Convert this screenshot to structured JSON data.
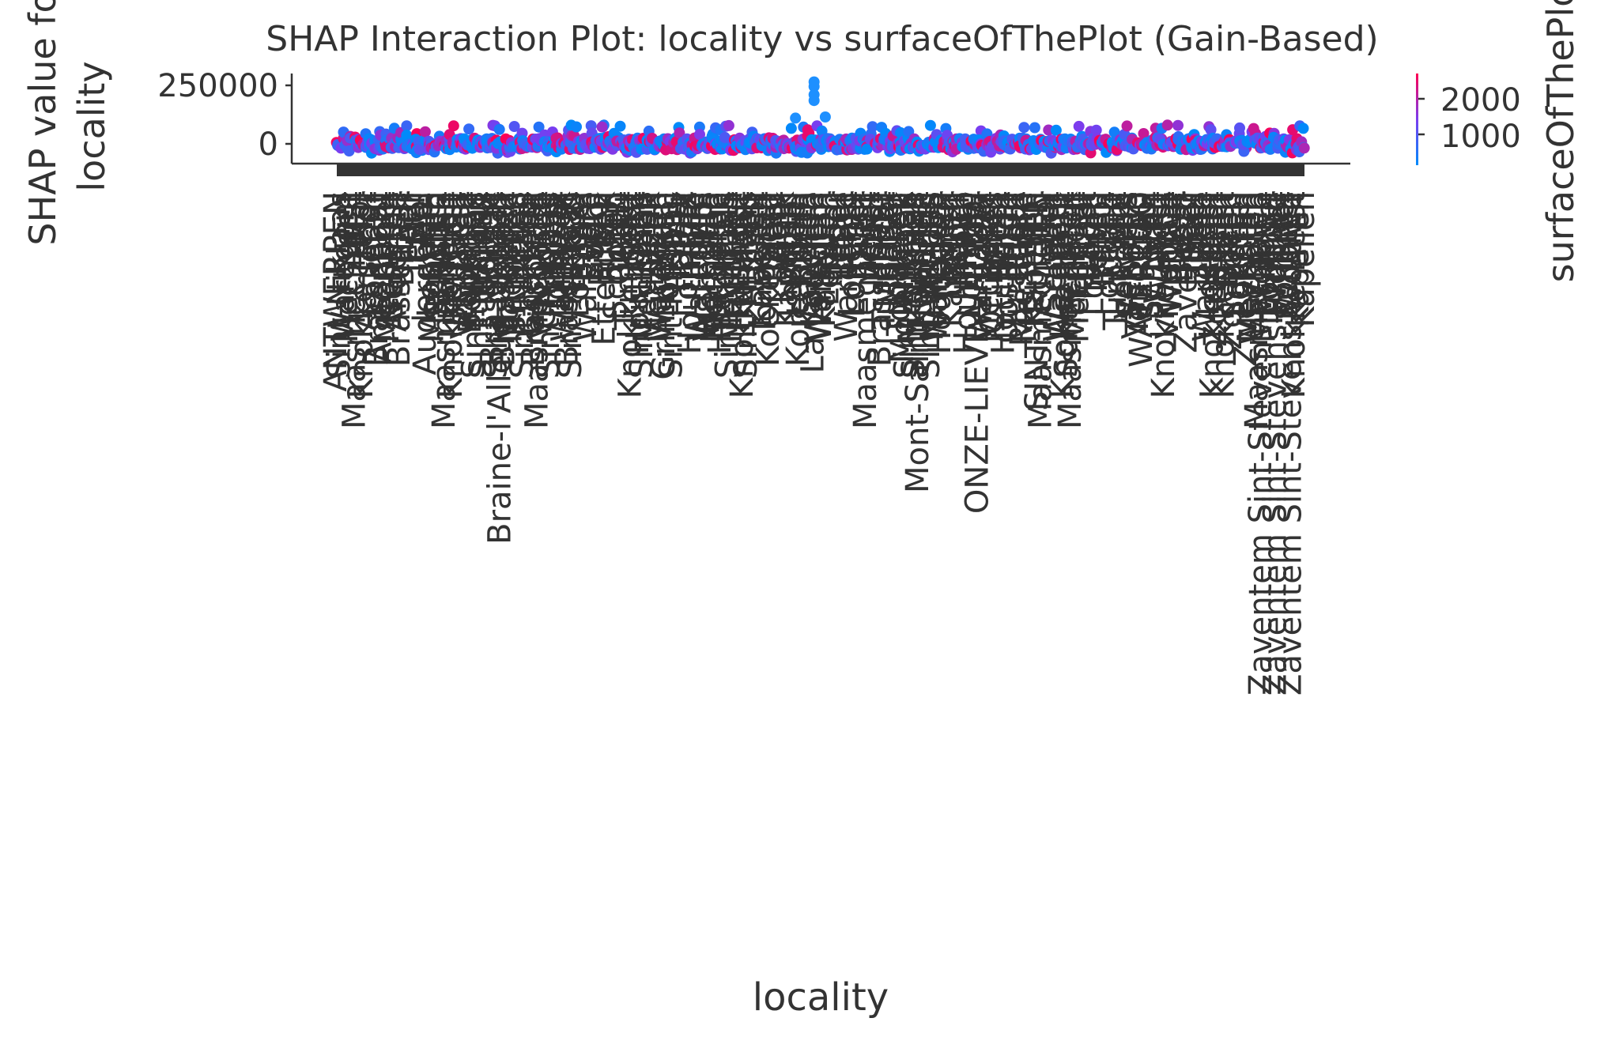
{
  "chart_data": {
    "type": "scatter",
    "title": "SHAP Interaction Plot: locality vs surfaceOfThePlot (Gain-Based)",
    "xlabel": "locality",
    "ylabel": "SHAP value for\nlocality",
    "ylim": [
      -50000,
      300000
    ],
    "yticks": [
      0,
      250000
    ],
    "ytick_labels": [
      "0",
      "250000"
    ],
    "grid": false,
    "categorical_x": true,
    "visible_x_tick_labels": [
      "ANTWERPEN",
      "Aalst",
      "Aarschot",
      "Anderlecht",
      "Andenne",
      "Ath",
      "Auderghem",
      "BRAINE",
      "BRUGGE",
      "Beringen",
      "Bertrix",
      "Braine-l'Alleud Ophain",
      "Bruxelles",
      "Charleroi",
      "Chapelle",
      "Dilbeek",
      "EEKLO",
      "Evere",
      "Etterbeek",
      "GAND",
      "Gent",
      "Genk",
      "Grimbergen",
      "Habay",
      "Halle",
      "Hermalle",
      "Herentals",
      "Hulshout",
      "Hasselt",
      "Koekelberg",
      "Kortrijk",
      "Kortenberg",
      "La Louvière",
      "Leuven",
      "Liège",
      "Lier",
      "MONS",
      "Mortsel",
      "Molenbeek",
      "Mont-Saint-Guibert",
      "NIVELLES",
      "Namur",
      "Ninove",
      "ONZE-LIEVE-VROUW",
      "Ottignies",
      "Oostende",
      "Roeselare",
      "SINT-TRUIDEN",
      "Seraing",
      "Schaerbeek",
      "Tournai",
      "Tienen",
      "Uccle",
      "Verviers",
      "WATERLOO",
      "WAVRE",
      "Woluwe",
      "Zaventem",
      "Zele",
      "Zottegem",
      "Zonhoven",
      "Zwevegem",
      "Zaventem Sint-Stevens-Woluwe"
    ],
    "points_summary": {
      "n_categories": 520,
      "y_range": [
        -40000,
        80000
      ],
      "outliers": [
        {
          "x_index": 256,
          "y": 265000
        },
        {
          "x_index": 256,
          "y": 245000
        },
        {
          "x_index": 256,
          "y": 210000
        },
        {
          "x_index": 256,
          "y": 185000
        },
        {
          "x_index": 246,
          "y": 110000
        },
        {
          "x_index": 262,
          "y": 115000
        }
      ]
    },
    "colorbar": {
      "label": "surfaceOfThePlot",
      "ticks": [
        1000,
        2000
      ],
      "tick_labels": [
        "1000",
        "2000"
      ],
      "range": [
        0,
        2600
      ],
      "low_color": "#008bfb",
      "high_color": "#ff0052"
    }
  },
  "labels": {
    "title": "SHAP Interaction Plot: locality vs surfaceOfThePlot (Gain-Based)",
    "xlabel": "locality",
    "ylabel_line1": "SHAP value for",
    "ylabel_line2": "locality",
    "ytick_0": "0",
    "ytick_1": "250000",
    "cbar_label": "surfaceOfThePlot",
    "cbar_tick_1000": "1000",
    "cbar_tick_2000": "2000"
  }
}
